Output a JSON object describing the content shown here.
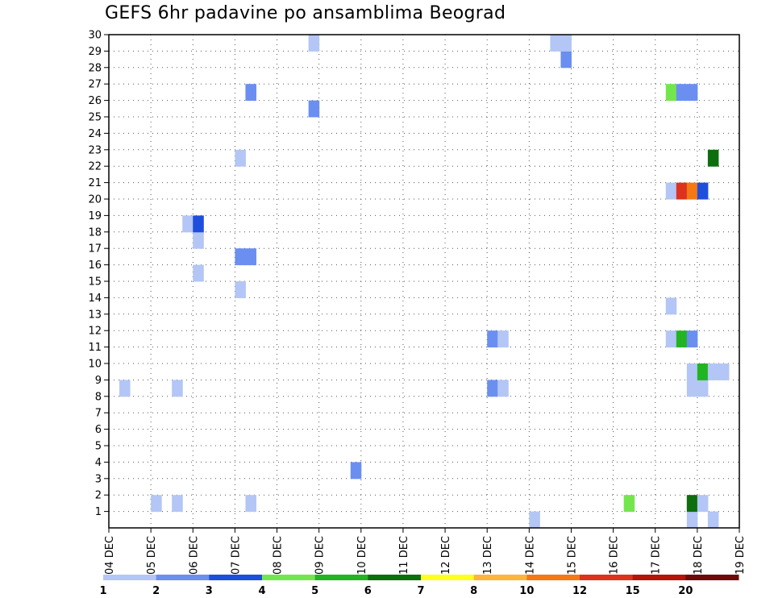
{
  "chart_data": {
    "type": "heatmap",
    "title": "GEFS 6hr padavine po ansamblima Beograd",
    "x_ticks": [
      "04 DEC",
      "05 DEC",
      "06 DEC",
      "07 DEC",
      "08 DEC",
      "09 DEC",
      "10 DEC",
      "11 DEC",
      "12 DEC",
      "13 DEC",
      "14 DEC",
      "15 DEC",
      "16 DEC",
      "17 DEC",
      "18 DEC",
      "19 DEC"
    ],
    "y_ticks": [
      1,
      2,
      3,
      4,
      5,
      6,
      7,
      8,
      9,
      10,
      11,
      12,
      13,
      14,
      15,
      16,
      17,
      18,
      19,
      20,
      21,
      22,
      23,
      24,
      25,
      26,
      27,
      28,
      29,
      30
    ],
    "x_range_days": [
      0,
      15
    ],
    "y_range": [
      0,
      30
    ],
    "grid": true,
    "colorbar": {
      "levels": [
        "1",
        "2",
        "3",
        "4",
        "5",
        "6",
        "7",
        "8",
        "10",
        "12",
        "15",
        "20"
      ],
      "colors": [
        "#b3c6f5",
        "#6b8ff0",
        "#1e4fdc",
        "#74e64d",
        "#22b422",
        "#0d6e0d",
        "#ffff1e",
        "#ffb43c",
        "#f57814",
        "#dc321e",
        "#b4140a",
        "#6e0a0a"
      ]
    },
    "cells": [
      {
        "t": 0.25,
        "m": 8,
        "c": 0
      },
      {
        "t": 1.0,
        "m": 1,
        "c": 0
      },
      {
        "t": 1.5,
        "m": 1,
        "c": 0
      },
      {
        "t": 1.5,
        "m": 8,
        "c": 0
      },
      {
        "t": 1.75,
        "m": 18,
        "c": 0
      },
      {
        "t": 2.0,
        "m": 15,
        "c": 0
      },
      {
        "t": 2.0,
        "m": 17,
        "c": 0
      },
      {
        "t": 2.0,
        "m": 18,
        "c": 2
      },
      {
        "t": 3.0,
        "m": 14,
        "c": 0
      },
      {
        "t": 3.0,
        "m": 16,
        "c": 1
      },
      {
        "t": 3.0,
        "m": 22,
        "c": 0
      },
      {
        "t": 3.25,
        "m": 16,
        "c": 1
      },
      {
        "t": 3.25,
        "m": 1,
        "c": 0
      },
      {
        "t": 3.25,
        "m": 26,
        "c": 1
      },
      {
        "t": 4.75,
        "m": 25,
        "c": 1
      },
      {
        "t": 4.75,
        "m": 29,
        "c": 0
      },
      {
        "t": 5.75,
        "m": 3,
        "c": 1
      },
      {
        "t": 9.0,
        "m": 8,
        "c": 1
      },
      {
        "t": 9.0,
        "m": 11,
        "c": 1
      },
      {
        "t": 9.25,
        "m": 8,
        "c": 0
      },
      {
        "t": 9.25,
        "m": 11,
        "c": 0
      },
      {
        "t": 10.0,
        "m": 0,
        "c": 0
      },
      {
        "t": 10.5,
        "m": 29,
        "c": 0
      },
      {
        "t": 10.75,
        "m": 28,
        "c": 1
      },
      {
        "t": 10.75,
        "m": 29,
        "c": 0
      },
      {
        "t": 12.25,
        "m": 1,
        "c": 3
      },
      {
        "t": 13.25,
        "m": 11,
        "c": 0
      },
      {
        "t": 13.25,
        "m": 13,
        "c": 0
      },
      {
        "t": 13.25,
        "m": 20,
        "c": 0
      },
      {
        "t": 13.25,
        "m": 26,
        "c": 3
      },
      {
        "t": 13.5,
        "m": 11,
        "c": 4
      },
      {
        "t": 13.5,
        "m": 20,
        "c": 9
      },
      {
        "t": 13.5,
        "m": 26,
        "c": 1
      },
      {
        "t": 13.75,
        "m": 0,
        "c": 0
      },
      {
        "t": 13.75,
        "m": 1,
        "c": 5
      },
      {
        "t": 13.75,
        "m": 8,
        "c": 0
      },
      {
        "t": 13.75,
        "m": 9,
        "c": 0
      },
      {
        "t": 13.75,
        "m": 11,
        "c": 1
      },
      {
        "t": 13.75,
        "m": 20,
        "c": 8
      },
      {
        "t": 13.75,
        "m": 26,
        "c": 1
      },
      {
        "t": 14.0,
        "m": 1,
        "c": 0
      },
      {
        "t": 14.0,
        "m": 8,
        "c": 0
      },
      {
        "t": 14.0,
        "m": 9,
        "c": 4
      },
      {
        "t": 14.0,
        "m": 20,
        "c": 2
      },
      {
        "t": 14.25,
        "m": 9,
        "c": 0
      },
      {
        "t": 14.25,
        "m": 22,
        "c": 5
      },
      {
        "t": 14.25,
        "m": 0,
        "c": 0
      },
      {
        "t": 14.5,
        "m": 9,
        "c": 0
      }
    ]
  }
}
